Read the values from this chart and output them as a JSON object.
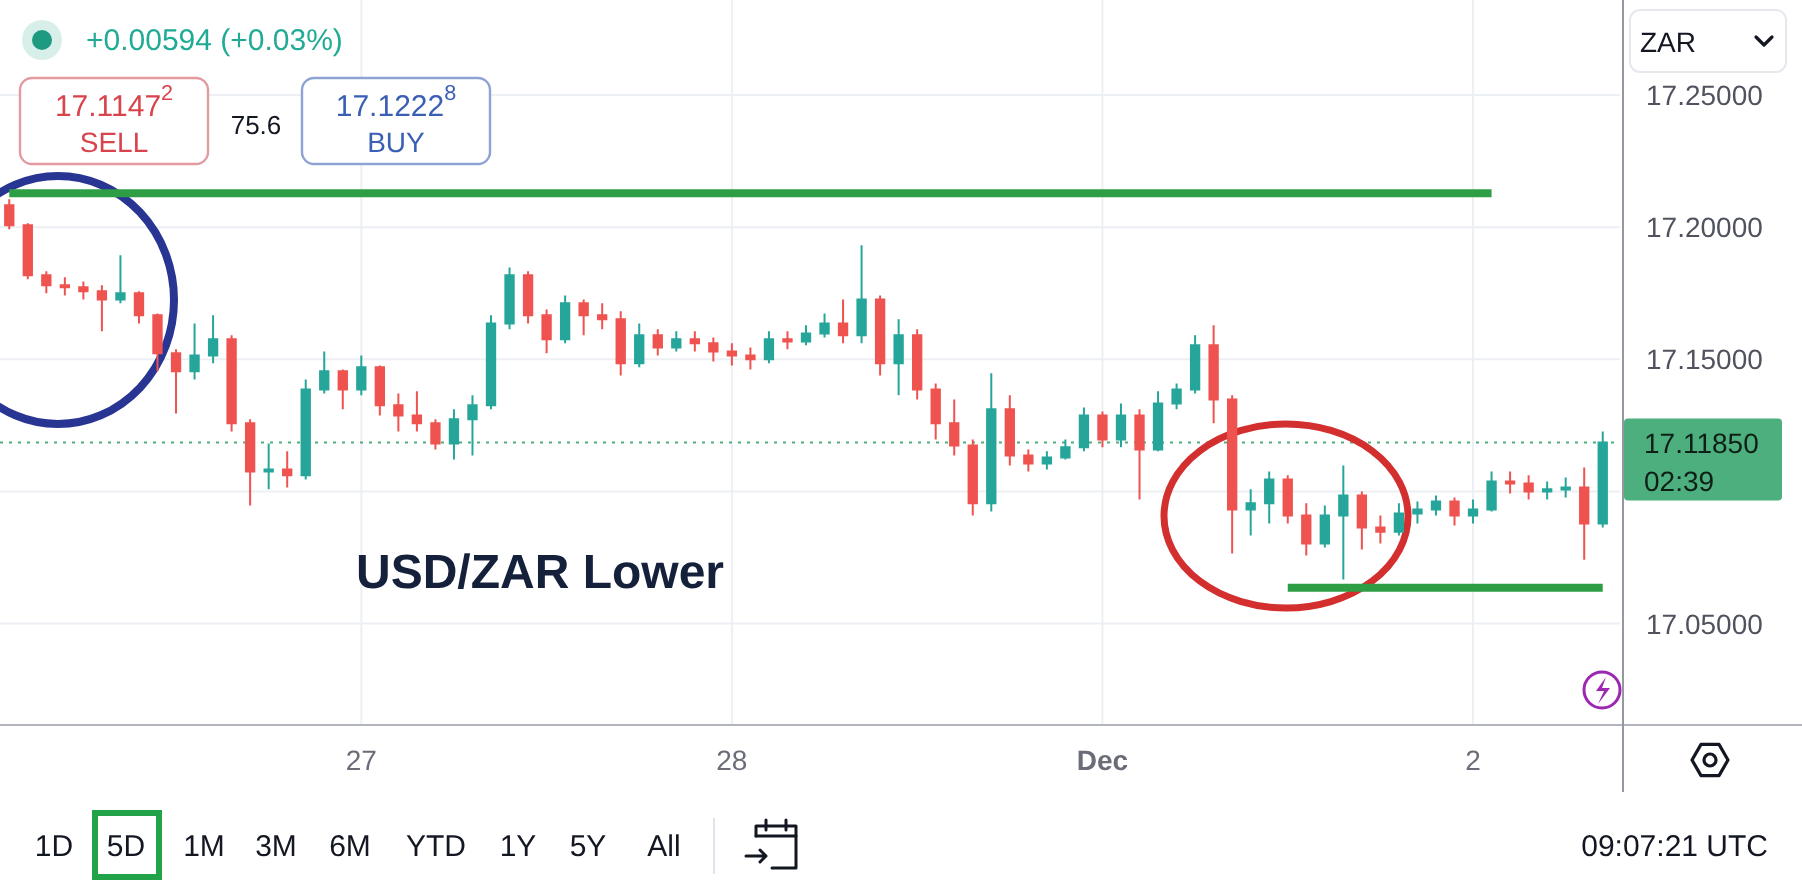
{
  "chart_data": {
    "type": "candlestick",
    "categories": [
      null,
      null,
      null,
      null,
      null,
      null,
      null,
      null,
      null,
      null,
      null,
      null,
      null,
      null,
      null,
      null,
      null,
      null,
      null,
      "27",
      null,
      null,
      null,
      null,
      null,
      null,
      null,
      null,
      null,
      null,
      null,
      null,
      null,
      null,
      null,
      null,
      null,
      null,
      null,
      "28",
      null,
      null,
      null,
      null,
      null,
      null,
      null,
      null,
      null,
      null,
      null,
      null,
      null,
      null,
      null,
      null,
      null,
      null,
      null,
      "Dec",
      null,
      null,
      null,
      null,
      null,
      null,
      null,
      null,
      null,
      null,
      null,
      null,
      null,
      null,
      null,
      null,
      null,
      null,
      null,
      "2",
      null,
      null,
      null,
      null,
      null,
      null,
      null
    ],
    "ohlc": [
      [
        17.2083,
        17.2106,
        17.1992,
        17.2008
      ],
      [
        17.2008,
        17.2015,
        17.1803,
        17.1818
      ],
      [
        17.1818,
        17.1833,
        17.175,
        17.178
      ],
      [
        17.178,
        17.1811,
        17.1742,
        17.1773
      ],
      [
        17.1773,
        17.1795,
        17.1727,
        17.1758
      ],
      [
        17.1758,
        17.178,
        17.1606,
        17.1727
      ],
      [
        17.1727,
        17.1894,
        17.1712,
        17.175
      ],
      [
        17.175,
        17.1758,
        17.1636,
        17.1667
      ],
      [
        17.1667,
        17.1674,
        17.1455,
        17.1523
      ],
      [
        17.1523,
        17.1538,
        17.1295,
        17.1455
      ],
      [
        17.1455,
        17.1636,
        17.1424,
        17.1515
      ],
      [
        17.1515,
        17.1667,
        17.1485,
        17.1576
      ],
      [
        17.1576,
        17.1591,
        17.1227,
        17.1258
      ],
      [
        17.1258,
        17.1273,
        17.0947,
        17.1076
      ],
      [
        17.1076,
        17.1182,
        17.1008,
        17.1083
      ],
      [
        17.1083,
        17.1152,
        17.1015,
        17.1061
      ],
      [
        17.1061,
        17.1424,
        17.1045,
        17.1386
      ],
      [
        17.1386,
        17.153,
        17.1371,
        17.1455
      ],
      [
        17.1455,
        17.1462,
        17.1311,
        17.1386
      ],
      [
        17.1386,
        17.1515,
        17.1364,
        17.147
      ],
      [
        17.147,
        17.1477,
        17.1288,
        17.1326
      ],
      [
        17.1326,
        17.1371,
        17.1227,
        17.1288
      ],
      [
        17.1288,
        17.1379,
        17.1227,
        17.1258
      ],
      [
        17.1258,
        17.1273,
        17.1159,
        17.1182
      ],
      [
        17.1182,
        17.1311,
        17.1121,
        17.1273
      ],
      [
        17.1273,
        17.1364,
        17.1136,
        17.1326
      ],
      [
        17.1326,
        17.1667,
        17.1311,
        17.1636
      ],
      [
        17.1636,
        17.1848,
        17.1614,
        17.1818
      ],
      [
        17.1818,
        17.1833,
        17.1636,
        17.1667
      ],
      [
        17.1667,
        17.1689,
        17.1523,
        17.1576
      ],
      [
        17.1576,
        17.1742,
        17.1561,
        17.1712
      ],
      [
        17.1712,
        17.1727,
        17.1591,
        17.1667
      ],
      [
        17.1667,
        17.1712,
        17.1614,
        17.1652
      ],
      [
        17.1652,
        17.1682,
        17.1439,
        17.1485
      ],
      [
        17.1485,
        17.1636,
        17.147,
        17.1591
      ],
      [
        17.1591,
        17.1614,
        17.1515,
        17.1545
      ],
      [
        17.1545,
        17.1606,
        17.153,
        17.1576
      ],
      [
        17.1576,
        17.1606,
        17.153,
        17.1561
      ],
      [
        17.1561,
        17.1583,
        17.1492,
        17.153
      ],
      [
        17.153,
        17.1561,
        17.1477,
        17.1515
      ],
      [
        17.1515,
        17.1545,
        17.1462,
        17.15
      ],
      [
        17.15,
        17.1606,
        17.1485,
        17.1576
      ],
      [
        17.1576,
        17.1606,
        17.1538,
        17.1568
      ],
      [
        17.1568,
        17.1629,
        17.1553,
        17.1598
      ],
      [
        17.1598,
        17.1674,
        17.1583,
        17.1636
      ],
      [
        17.1636,
        17.1727,
        17.1561,
        17.1591
      ],
      [
        17.1591,
        17.1932,
        17.1561,
        17.1727
      ],
      [
        17.1727,
        17.1742,
        17.1439,
        17.1485
      ],
      [
        17.1485,
        17.1652,
        17.1364,
        17.1591
      ],
      [
        17.1591,
        17.1614,
        17.1348,
        17.1386
      ],
      [
        17.1386,
        17.1409,
        17.1197,
        17.1258
      ],
      [
        17.1258,
        17.1348,
        17.1136,
        17.1174
      ],
      [
        17.1174,
        17.1197,
        17.0909,
        17.0955
      ],
      [
        17.0955,
        17.1447,
        17.0924,
        17.1311
      ],
      [
        17.1311,
        17.1364,
        17.1098,
        17.1136
      ],
      [
        17.1136,
        17.1159,
        17.1076,
        17.1106
      ],
      [
        17.1106,
        17.1152,
        17.1083,
        17.1129
      ],
      [
        17.1129,
        17.1197,
        17.1121,
        17.1167
      ],
      [
        17.1167,
        17.1318,
        17.1152,
        17.1288
      ],
      [
        17.1288,
        17.1303,
        17.1167,
        17.1197
      ],
      [
        17.1197,
        17.1333,
        17.1167,
        17.1288
      ],
      [
        17.1288,
        17.1311,
        17.097,
        17.1159
      ],
      [
        17.1159,
        17.1379,
        17.1152,
        17.1333
      ],
      [
        17.1333,
        17.1409,
        17.1311,
        17.1386
      ],
      [
        17.1386,
        17.1591,
        17.1371,
        17.1553
      ],
      [
        17.1553,
        17.1629,
        17.1258,
        17.1348
      ],
      [
        17.1348,
        17.1364,
        17.0765,
        17.0932
      ],
      [
        17.0932,
        17.1008,
        17.0833,
        17.0955
      ],
      [
        17.0955,
        17.1076,
        17.0879,
        17.1045
      ],
      [
        17.1045,
        17.1061,
        17.0879,
        17.0909
      ],
      [
        17.0909,
        17.0955,
        17.0758,
        17.0803
      ],
      [
        17.0803,
        17.0947,
        17.0788,
        17.0909
      ],
      [
        17.0909,
        17.1098,
        17.0667,
        17.0985
      ],
      [
        17.0985,
        17.1,
        17.078,
        17.0864
      ],
      [
        17.0864,
        17.0909,
        17.0803,
        17.0848
      ],
      [
        17.0848,
        17.0955,
        17.0833,
        17.0917
      ],
      [
        17.0917,
        17.0962,
        17.0879,
        17.0932
      ],
      [
        17.0932,
        17.0985,
        17.0909,
        17.0962
      ],
      [
        17.0962,
        17.0977,
        17.0871,
        17.0909
      ],
      [
        17.0909,
        17.097,
        17.0879,
        17.0932
      ],
      [
        17.0932,
        17.1076,
        17.0924,
        17.1038
      ],
      [
        17.1038,
        17.1076,
        17.0992,
        17.103
      ],
      [
        17.103,
        17.1061,
        17.097,
        17.1
      ],
      [
        17.1,
        17.1038,
        17.097,
        17.1008
      ],
      [
        17.1008,
        17.1053,
        17.0977,
        17.1015
      ],
      [
        17.1015,
        17.1091,
        17.0742,
        17.0879
      ],
      [
        17.0879,
        17.1227,
        17.0864,
        17.1185
      ]
    ],
    "colors": [
      "#ef5350",
      "#ef5350",
      "#ef5350",
      "#ef5350",
      "#ef5350",
      "#ef5350",
      "#26a69a",
      "#ef5350",
      "#ef5350",
      "#ef5350",
      "#26a69a",
      "#26a69a",
      "#ef5350",
      "#ef5350",
      "#26a69a",
      "#ef5350",
      "#26a69a",
      "#26a69a",
      "#ef5350",
      "#26a69a",
      "#ef5350",
      "#ef5350",
      "#ef5350",
      "#ef5350",
      "#26a69a",
      "#26a69a",
      "#26a69a",
      "#26a69a",
      "#ef5350",
      "#ef5350",
      "#26a69a",
      "#ef5350",
      "#ef5350",
      "#ef5350",
      "#26a69a",
      "#ef5350",
      "#26a69a",
      "#ef5350",
      "#ef5350",
      "#ef5350",
      "#ef5350",
      "#26a69a",
      "#ef5350",
      "#26a69a",
      "#26a69a",
      "#ef5350",
      "#26a69a",
      "#ef5350",
      "#26a69a",
      "#ef5350",
      "#ef5350",
      "#ef5350",
      "#ef5350",
      "#26a69a",
      "#ef5350",
      "#ef5350",
      "#26a69a",
      "#26a69a",
      "#26a69a",
      "#ef5350",
      "#26a69a",
      "#ef5350",
      "#26a69a",
      "#26a69a",
      "#26a69a",
      "#ef5350",
      "#ef5350",
      "#26a69a",
      "#26a69a",
      "#ef5350",
      "#ef5350",
      "#26a69a",
      "#26a69a",
      "#ef5350",
      "#ef5350",
      "#26a69a",
      "#26a69a",
      "#26a69a",
      "#ef5350",
      "#26a69a",
      "#26a69a",
      "#ef5350",
      "#ef5350",
      "#26a69a",
      "#26a69a",
      "#ef5350",
      "#26a69a"
    ],
    "series": [
      {
        "type": "line",
        "color": "#2e9e44",
        "values": [
          17.2129,
          17.2129,
          17.2129,
          17.2129,
          17.2129,
          17.2129,
          17.2129,
          17.2129,
          17.2129,
          17.2129,
          17.2129,
          17.2129,
          17.2129,
          17.2129,
          17.2129,
          17.2129,
          17.2129,
          17.2129,
          17.2129,
          17.2129,
          17.2129,
          17.2129,
          17.2129,
          17.2129,
          17.2129,
          17.2129,
          17.2129,
          17.2129,
          17.2129,
          17.2129,
          17.2129,
          17.2129,
          17.2129,
          17.2129,
          17.2129,
          17.2129,
          17.2129,
          17.2129,
          17.2129,
          17.2129,
          17.2129,
          17.2129,
          17.2129,
          17.2129,
          17.2129,
          17.2129,
          17.2129,
          17.2129,
          17.2129,
          17.2129,
          17.2129,
          17.2129,
          17.2129,
          17.2129,
          17.2129,
          17.2129,
          17.2129,
          17.2129,
          17.2129,
          17.2129,
          17.2129,
          17.2129,
          17.2129,
          17.2129,
          17.2129,
          17.2129,
          17.2129,
          17.2129,
          17.2129,
          17.2129,
          17.2129,
          17.2129,
          17.2129,
          17.2129,
          17.2129,
          17.2129,
          17.2129,
          17.2129,
          17.2129,
          17.2129,
          17.2129,
          null,
          null,
          null,
          null,
          null,
          null
        ]
      },
      {
        "type": "line",
        "color": "#2e9e44",
        "values": [
          null,
          null,
          null,
          null,
          null,
          null,
          null,
          null,
          null,
          null,
          null,
          null,
          null,
          null,
          null,
          null,
          null,
          null,
          null,
          null,
          null,
          null,
          null,
          null,
          null,
          null,
          null,
          null,
          null,
          null,
          null,
          null,
          null,
          null,
          null,
          null,
          null,
          null,
          null,
          null,
          null,
          null,
          null,
          null,
          null,
          null,
          null,
          null,
          null,
          null,
          null,
          null,
          null,
          null,
          null,
          null,
          null,
          null,
          null,
          null,
          null,
          null,
          null,
          null,
          null,
          null,
          null,
          null,
          null,
          17.0636,
          17.0636,
          17.0636,
          17.0636,
          17.0636,
          17.0636,
          17.0636,
          17.0636,
          17.0636,
          17.0636,
          17.0636,
          17.0636,
          17.0636,
          17.0636,
          17.0636,
          17.0636,
          17.0636,
          17.0636
        ]
      }
    ],
    "ylim": [
      17.012,
      17.286
    ],
    "yticks": [
      {
        "value": 17.25,
        "label": "17.25000"
      },
      {
        "value": 17.2,
        "label": "17.20000"
      },
      {
        "value": 17.15,
        "label": "17.15000"
      },
      {
        "value": 17.1,
        "label": null
      },
      {
        "value": 17.05,
        "label": "17.05000"
      }
    ],
    "grid": true,
    "ref_lines": [
      {
        "axis": "y",
        "value": 17.1185,
        "label": "17.11850\n02:39",
        "color": "#4caf7d",
        "line_style": "dotted"
      }
    ],
    "annotations": [
      "+0.00594 (+0.03%)",
      "17.1147$^{2}$",
      "SELL",
      "75.6",
      "17.1222$^{8}$",
      "BUY",
      "USD/ZAR Lower",
      "ZAR",
      "1D",
      "5D",
      "1M",
      "3M",
      "6M",
      "YTD",
      "1Y",
      "5Y",
      "All",
      "09:07:21 UTC"
    ]
  }
}
